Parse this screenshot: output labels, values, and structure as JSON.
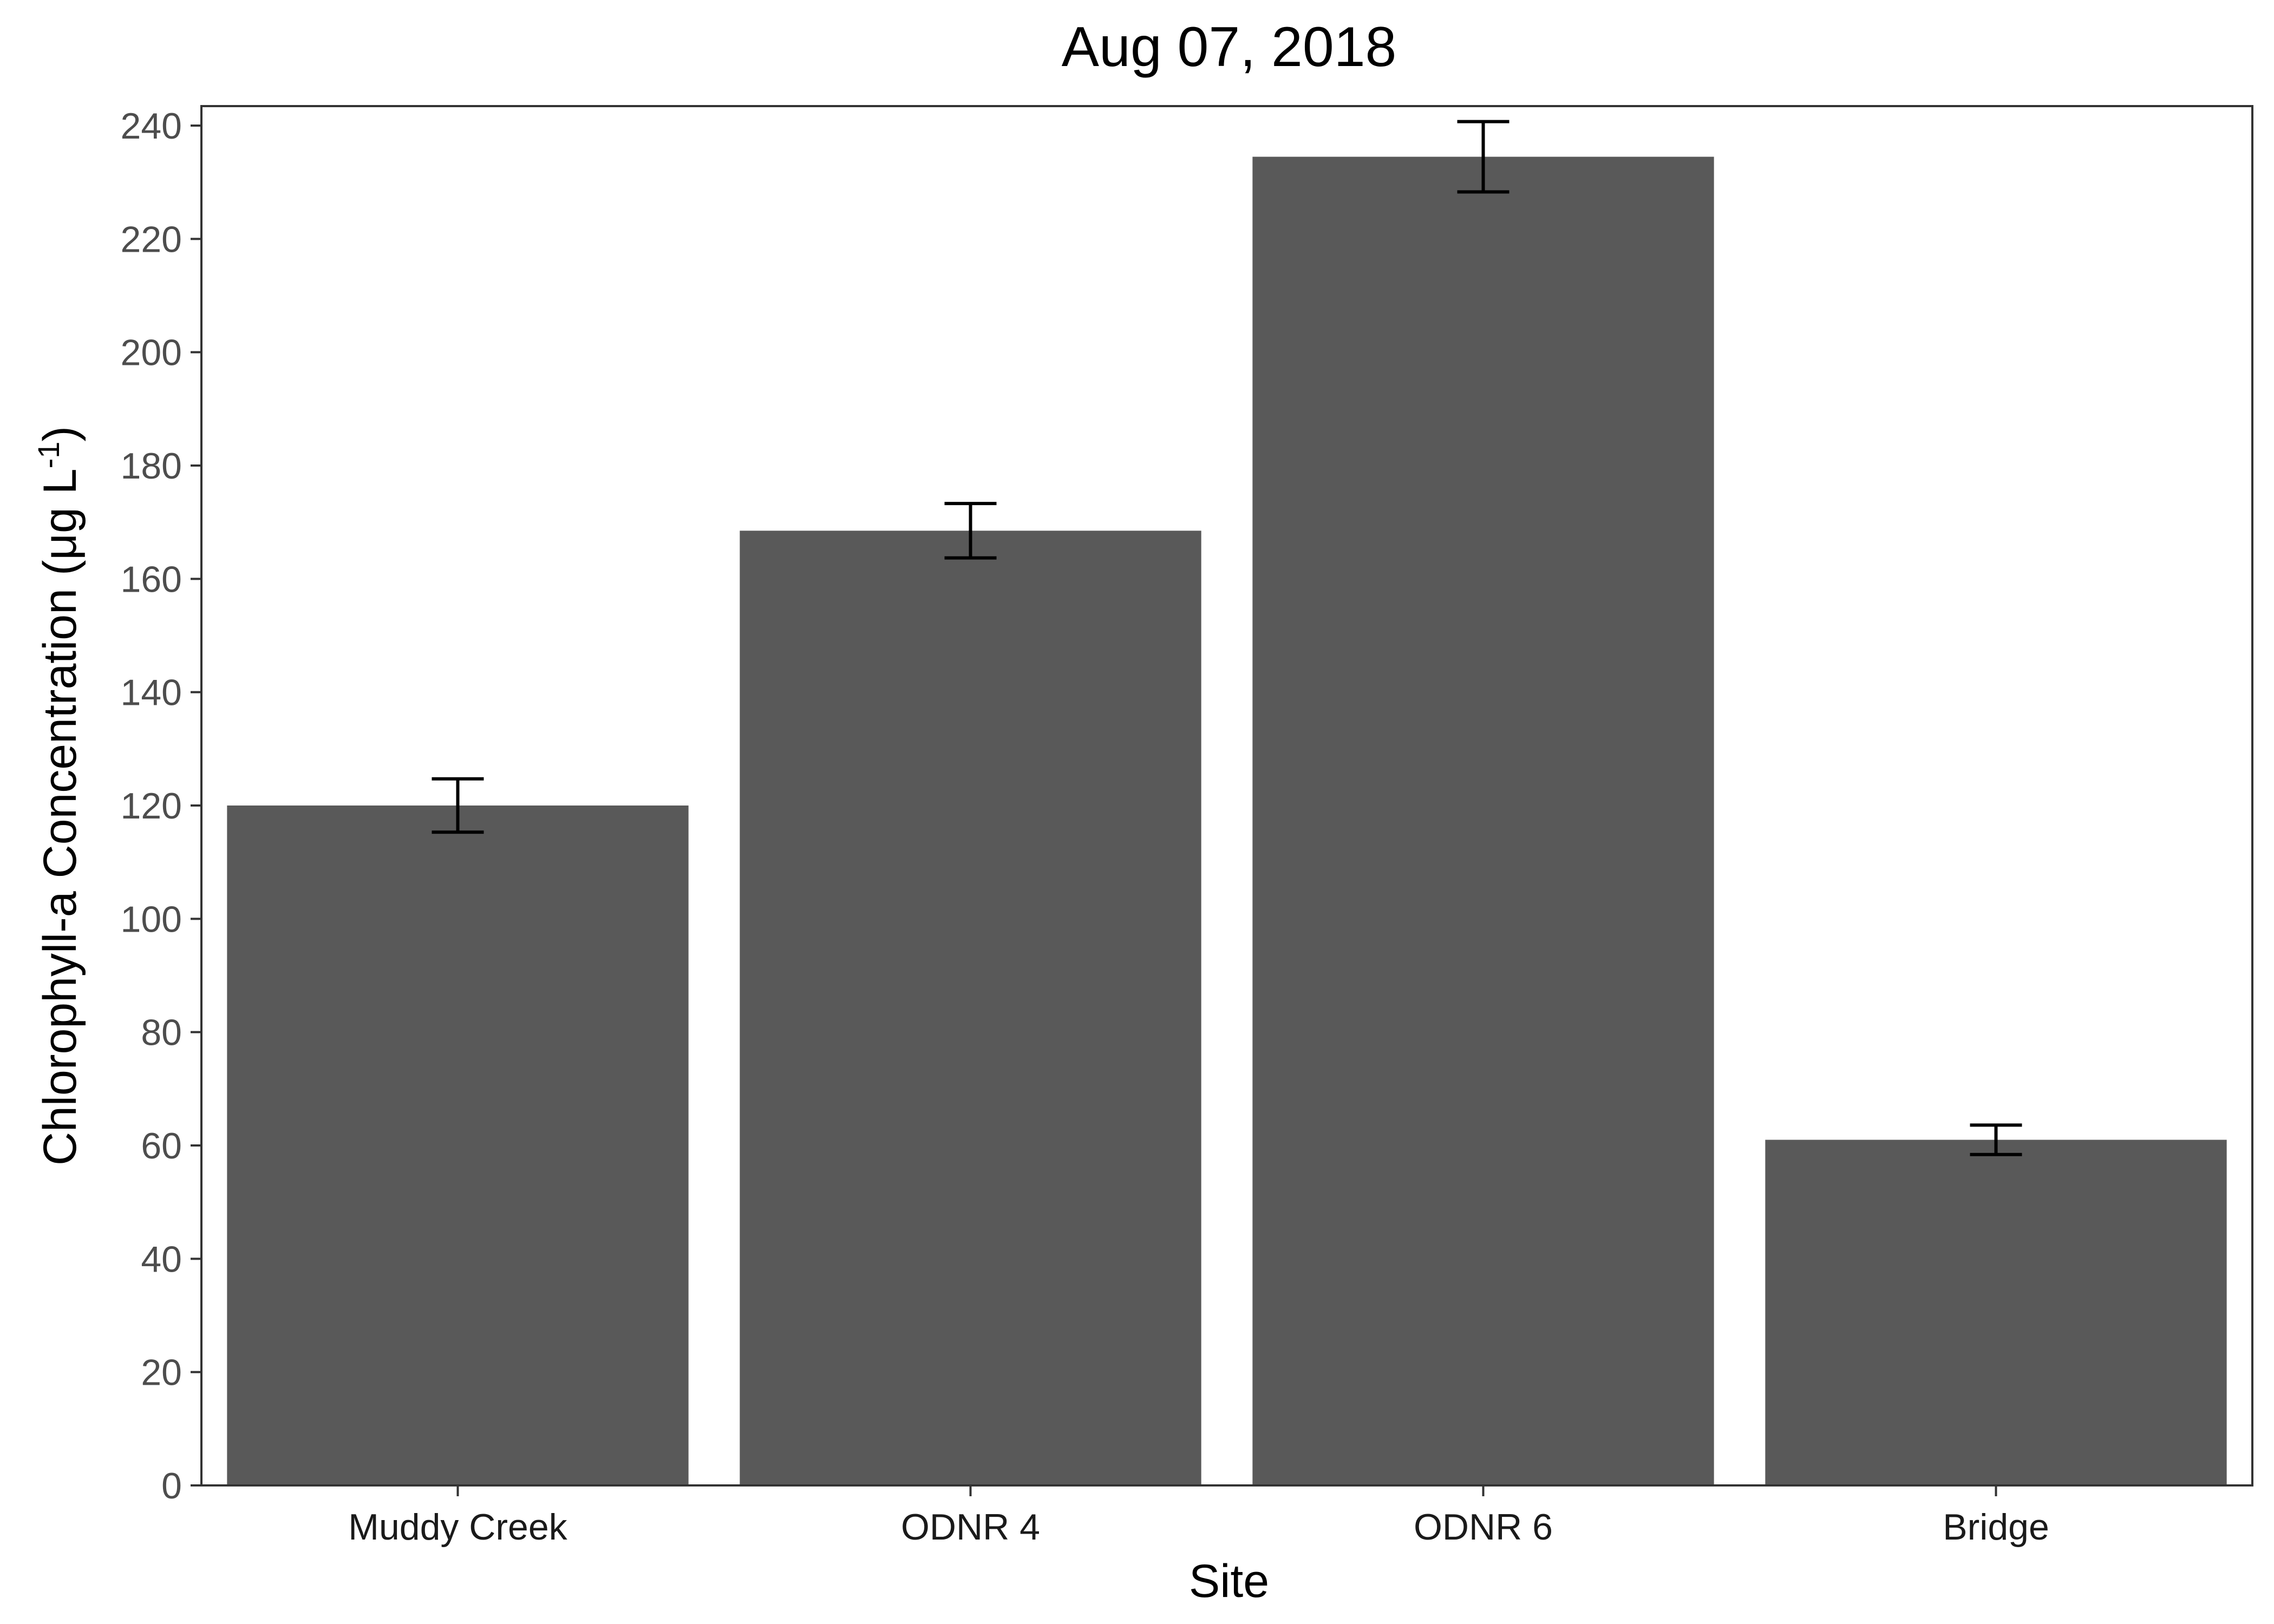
{
  "chart_data": {
    "type": "bar",
    "title": "Aug 07, 2018",
    "xlabel": "Site",
    "ylabel": "Chlorophyll-a Concentration (μg L",
    "ylabel_superscript": "-1",
    "ylabel_suffix": ")",
    "categories": [
      "Muddy Creek",
      "ODNR 4",
      "ODNR 6",
      "Bridge"
    ],
    "values": [
      120,
      168.5,
      234.5,
      61
    ],
    "error": [
      4.7,
      4.8,
      6.2,
      2.6
    ],
    "ylim": [
      0,
      243
    ],
    "yticks": [
      0,
      20,
      40,
      60,
      80,
      100,
      120,
      140,
      160,
      180,
      200,
      220,
      240
    ],
    "grid": false,
    "legend": "none",
    "colors": {
      "bar": "#595959",
      "errorbar": "#000000",
      "axis": "#333333"
    }
  }
}
